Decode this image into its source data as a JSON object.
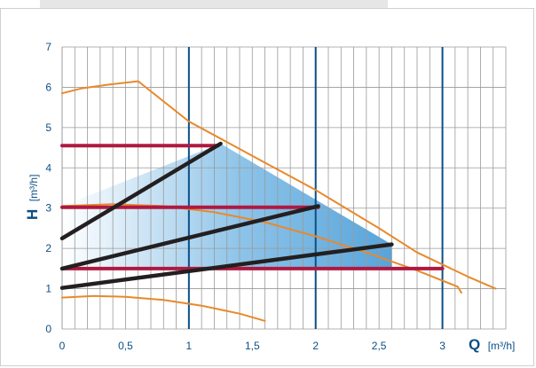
{
  "colors": {
    "background": "#ffffff",
    "frame": "#cfcfcf",
    "top_bar": "#e6e6e6",
    "grid": "#9a9a9a",
    "axis_text": "#0a4f86",
    "major_vertical_lines": "#0a4f86",
    "pump_curves": "#e8892b",
    "control_lines": "#231f20",
    "constant_pressure_lines": "#b01840",
    "operating_area_fill": "#5fa8dc"
  },
  "chart_data": {
    "type": "line",
    "title": "",
    "xlabel": {
      "symbol": "Q",
      "unit": "[m³/h]"
    },
    "ylabel": {
      "symbol": "H",
      "unit": "[m³/h]"
    },
    "xlim": [
      0,
      3.5
    ],
    "ylim": [
      0,
      7
    ],
    "x_ticks": [
      "0",
      "0,5",
      "1",
      "1,5",
      "2",
      "2,5",
      "3"
    ],
    "x_tick_values": [
      0,
      0.5,
      1,
      1.5,
      2,
      2.5,
      3
    ],
    "y_ticks": [
      "0",
      "1",
      "2",
      "3",
      "4",
      "5",
      "6",
      "7"
    ],
    "y_tick_values": [
      0,
      1,
      2,
      3,
      4,
      5,
      6,
      7
    ],
    "minor_grid_x_step": 0.1,
    "grid": true,
    "major_vertical_lines_at": [
      1,
      2,
      3
    ],
    "shaded_region": [
      [
        0,
        1
      ],
      [
        0,
        3.05
      ],
      [
        1.25,
        4.6
      ],
      [
        2.6,
        2.1
      ],
      [
        2.6,
        1.5
      ],
      [
        0,
        1.5
      ]
    ],
    "series": [
      {
        "kind": "pump-max-curve",
        "points": [
          [
            0,
            5.85
          ],
          [
            0.15,
            5.97
          ],
          [
            0.35,
            6.06
          ],
          [
            0.6,
            6.15
          ],
          [
            1.0,
            5.15
          ],
          [
            1.5,
            4.3
          ],
          [
            2.0,
            3.45
          ],
          [
            2.5,
            2.5
          ],
          [
            2.8,
            1.9
          ],
          [
            3.2,
            1.3
          ],
          [
            3.42,
            1.0
          ]
        ]
      },
      {
        "kind": "pump-mid-curve",
        "points": [
          [
            0,
            3.05
          ],
          [
            0.4,
            3.1
          ],
          [
            0.8,
            3.05
          ],
          [
            1.2,
            2.9
          ],
          [
            1.6,
            2.65
          ],
          [
            2.0,
            2.3
          ],
          [
            2.4,
            1.9
          ],
          [
            2.8,
            1.45
          ],
          [
            3.12,
            1.05
          ],
          [
            3.15,
            0.9
          ]
        ]
      },
      {
        "kind": "pump-min-curve",
        "points": [
          [
            0,
            0.78
          ],
          [
            0.25,
            0.82
          ],
          [
            0.5,
            0.8
          ],
          [
            0.8,
            0.72
          ],
          [
            1.1,
            0.58
          ],
          [
            1.4,
            0.38
          ],
          [
            1.6,
            0.2
          ]
        ]
      },
      {
        "kind": "constant-pressure",
        "points": [
          [
            0,
            4.55
          ],
          [
            1.23,
            4.55
          ]
        ]
      },
      {
        "kind": "constant-pressure",
        "points": [
          [
            0,
            3.02
          ],
          [
            2.02,
            3.02
          ]
        ]
      },
      {
        "kind": "constant-pressure",
        "points": [
          [
            0,
            1.5
          ],
          [
            3.0,
            1.5
          ]
        ]
      },
      {
        "kind": "proportional-pressure",
        "points": [
          [
            0,
            2.25
          ],
          [
            1.25,
            4.6
          ]
        ]
      },
      {
        "kind": "proportional-pressure",
        "points": [
          [
            0,
            1.5
          ],
          [
            2.02,
            3.05
          ]
        ]
      },
      {
        "kind": "proportional-pressure",
        "points": [
          [
            0,
            1.02
          ],
          [
            2.6,
            2.1
          ]
        ]
      }
    ]
  }
}
